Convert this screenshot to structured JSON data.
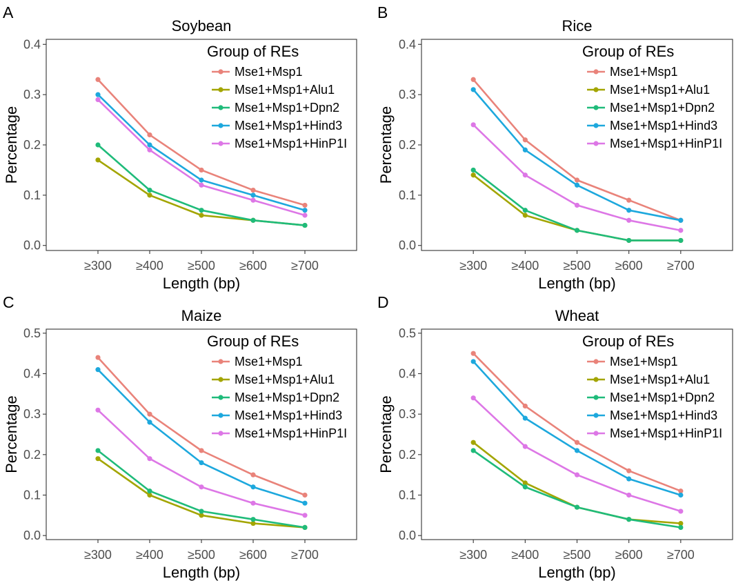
{
  "chart_data": [
    {
      "type": "line",
      "panel_label": "A",
      "title": "Soybean",
      "xlabel": "Length (bp)",
      "ylabel": "Percentage",
      "categories": [
        "≥300",
        "≥400",
        "≥500",
        "≥600",
        "≥700"
      ],
      "yticks": [
        "0.0",
        "0.1",
        "0.2",
        "0.3",
        "0.4"
      ],
      "ylim": [
        -0.01,
        0.41
      ],
      "grid": false,
      "legend": {
        "title": "Group of REs",
        "position": "top-right"
      },
      "series": [
        {
          "name": "Mse1+Msp1",
          "color": "#E9837A",
          "values": [
            0.33,
            0.22,
            0.15,
            0.11,
            0.08
          ]
        },
        {
          "name": "Mse1+Msp1+Alu1",
          "color": "#A3A500",
          "values": [
            0.17,
            0.1,
            0.06,
            0.05,
            0.04
          ]
        },
        {
          "name": "Mse1+Msp1+Dpn2",
          "color": "#1FBB7A",
          "values": [
            0.2,
            0.11,
            0.07,
            0.05,
            0.04
          ]
        },
        {
          "name": "Mse1+Msp1+Hind3",
          "color": "#1DA8DD",
          "values": [
            0.3,
            0.2,
            0.13,
            0.1,
            0.07
          ]
        },
        {
          "name": "Mse1+Msp1+HinP1I",
          "color": "#DD77E6",
          "values": [
            0.29,
            0.19,
            0.12,
            0.09,
            0.06
          ]
        }
      ]
    },
    {
      "type": "line",
      "panel_label": "B",
      "title": "Rice",
      "xlabel": "Length (bp)",
      "ylabel": "Percentage",
      "categories": [
        "≥300",
        "≥400",
        "≥500",
        "≥600",
        "≥700"
      ],
      "yticks": [
        "0.0",
        "0.1",
        "0.2",
        "0.3",
        "0.4"
      ],
      "ylim": [
        -0.01,
        0.41
      ],
      "grid": false,
      "legend": {
        "title": "Group of REs",
        "position": "top-right"
      },
      "series": [
        {
          "name": "Mse1+Msp1",
          "color": "#E9837A",
          "values": [
            0.33,
            0.21,
            0.13,
            0.09,
            0.05
          ]
        },
        {
          "name": "Mse1+Msp1+Alu1",
          "color": "#A3A500",
          "values": [
            0.14,
            0.06,
            0.03,
            0.01,
            0.01
          ]
        },
        {
          "name": "Mse1+Msp1+Dpn2",
          "color": "#1FBB7A",
          "values": [
            0.15,
            0.07,
            0.03,
            0.01,
            0.01
          ]
        },
        {
          "name": "Mse1+Msp1+Hind3",
          "color": "#1DA8DD",
          "values": [
            0.31,
            0.19,
            0.12,
            0.07,
            0.05
          ]
        },
        {
          "name": "Mse1+Msp1+HinP1I",
          "color": "#DD77E6",
          "values": [
            0.24,
            0.14,
            0.08,
            0.05,
            0.03
          ]
        }
      ]
    },
    {
      "type": "line",
      "panel_label": "C",
      "title": "Maize",
      "xlabel": "Length (bp)",
      "ylabel": "Percentage",
      "categories": [
        "≥300",
        "≥400",
        "≥500",
        "≥600",
        "≥700"
      ],
      "yticks": [
        "0.0",
        "0.1",
        "0.2",
        "0.3",
        "0.4",
        "0.5"
      ],
      "ylim": [
        -0.01,
        0.51
      ],
      "grid": false,
      "legend": {
        "title": "Group of REs",
        "position": "top-right"
      },
      "series": [
        {
          "name": "Mse1+Msp1",
          "color": "#E9837A",
          "values": [
            0.44,
            0.3,
            0.21,
            0.15,
            0.1
          ]
        },
        {
          "name": "Mse1+Msp1+Alu1",
          "color": "#A3A500",
          "values": [
            0.19,
            0.1,
            0.05,
            0.03,
            0.02
          ]
        },
        {
          "name": "Mse1+Msp1+Dpn2",
          "color": "#1FBB7A",
          "values": [
            0.21,
            0.11,
            0.06,
            0.04,
            0.02
          ]
        },
        {
          "name": "Mse1+Msp1+Hind3",
          "color": "#1DA8DD",
          "values": [
            0.41,
            0.28,
            0.18,
            0.12,
            0.08
          ]
        },
        {
          "name": "Mse1+Msp1+HinP1I",
          "color": "#DD77E6",
          "values": [
            0.31,
            0.19,
            0.12,
            0.08,
            0.05
          ]
        }
      ]
    },
    {
      "type": "line",
      "panel_label": "D",
      "title": "Wheat",
      "xlabel": "Length (bp)",
      "ylabel": "Percentage",
      "categories": [
        "≥300",
        "≥400",
        "≥500",
        "≥600",
        "≥700"
      ],
      "yticks": [
        "0.0",
        "0.1",
        "0.2",
        "0.3",
        "0.4",
        "0.5"
      ],
      "ylim": [
        -0.01,
        0.51
      ],
      "grid": false,
      "legend": {
        "title": "Group of REs",
        "position": "top-right"
      },
      "series": [
        {
          "name": "Mse1+Msp1",
          "color": "#E9837A",
          "values": [
            0.45,
            0.32,
            0.23,
            0.16,
            0.11
          ]
        },
        {
          "name": "Mse1+Msp1+Alu1",
          "color": "#A3A500",
          "values": [
            0.23,
            0.13,
            0.07,
            0.04,
            0.03
          ]
        },
        {
          "name": "Mse1+Msp1+Dpn2",
          "color": "#1FBB7A",
          "values": [
            0.21,
            0.12,
            0.07,
            0.04,
            0.02
          ]
        },
        {
          "name": "Mse1+Msp1+Hind3",
          "color": "#1DA8DD",
          "values": [
            0.43,
            0.29,
            0.21,
            0.14,
            0.1
          ]
        },
        {
          "name": "Mse1+Msp1+HinP1I",
          "color": "#DD77E6",
          "values": [
            0.34,
            0.22,
            0.15,
            0.1,
            0.06
          ]
        }
      ]
    }
  ]
}
